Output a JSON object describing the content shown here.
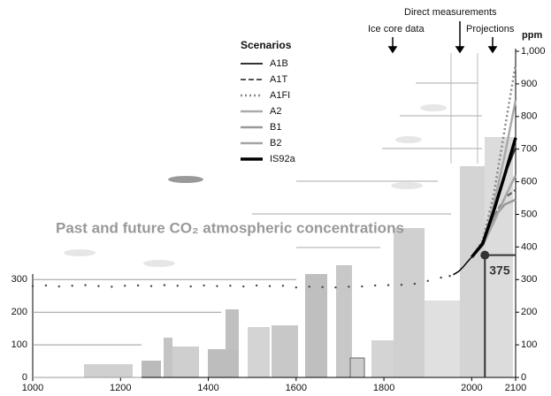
{
  "chart_data": {
    "type": "line",
    "title": "Past and future CO₂ atmospheric concentrations",
    "annotations": {
      "ice_core": "Ice core data",
      "direct": "Direct measurements",
      "projections": "Projections",
      "unit": "ppm"
    },
    "legend_title": "Scenarios",
    "xlim": [
      1000,
      2100
    ],
    "xticks": [
      1000,
      1200,
      1400,
      1600,
      1800,
      2000,
      2100
    ],
    "ylim": [
      0,
      1000
    ],
    "yticks": [
      0,
      100,
      200,
      300
    ],
    "y2ticks": [
      0,
      100,
      200,
      300,
      400,
      500,
      600,
      700,
      800,
      900,
      {
        "value": 1000,
        "label": "1,000"
      }
    ],
    "ice_core": {
      "color": "#444",
      "x": [
        1000,
        1030,
        1060,
        1090,
        1120,
        1150,
        1180,
        1210,
        1240,
        1270,
        1300,
        1330,
        1360,
        1390,
        1420,
        1450,
        1480,
        1510,
        1540,
        1570,
        1600,
        1630,
        1660,
        1690,
        1720,
        1750,
        1780,
        1810,
        1840,
        1870,
        1900,
        1930,
        1950
      ],
      "values": [
        280,
        282,
        279,
        281,
        283,
        280,
        278,
        281,
        282,
        280,
        283,
        281,
        279,
        282,
        280,
        281,
        279,
        282,
        280,
        281,
        276,
        278,
        277,
        276,
        278,
        279,
        282,
        283,
        284,
        287,
        296,
        306,
        311
      ]
    },
    "measurements": {
      "color": "#000",
      "x": [
        1958,
        1970,
        1980,
        1990,
        2000
      ],
      "values": [
        315,
        325,
        338,
        354,
        369
      ]
    },
    "current": {
      "x": 2030,
      "value": 375
    },
    "scenario_years": [
      2000,
      2025,
      2050,
      2075,
      2100
    ],
    "scenarios": [
      {
        "name": "A1B",
        "color": "#333",
        "dash": "solid",
        "width": 2,
        "values": [
          369,
          415,
          520,
          620,
          705
        ]
      },
      {
        "name": "A1T",
        "color": "#555",
        "dash": "dashed",
        "width": 2,
        "values": [
          369,
          410,
          490,
          550,
          575
        ]
      },
      {
        "name": "A1FI",
        "color": "#888",
        "dash": "dotted",
        "width": 2.5,
        "values": [
          369,
          420,
          560,
          760,
          960
        ]
      },
      {
        "name": "A2",
        "color": "#aaa",
        "dash": "solid",
        "width": 2.5,
        "values": [
          369,
          410,
          530,
          680,
          850
        ]
      },
      {
        "name": "B1",
        "color": "#999",
        "dash": "solid",
        "width": 2.5,
        "values": [
          369,
          410,
          490,
          530,
          545
        ]
      },
      {
        "name": "B2",
        "color": "#a5a5a5",
        "dash": "solid",
        "width": 2.5,
        "values": [
          369,
          405,
          475,
          550,
          620
        ]
      },
      {
        "name": "IS92a",
        "color": "#000",
        "dash": "solid",
        "width": 3.5,
        "values": [
          369,
          410,
          510,
          620,
          735
        ]
      }
    ]
  }
}
